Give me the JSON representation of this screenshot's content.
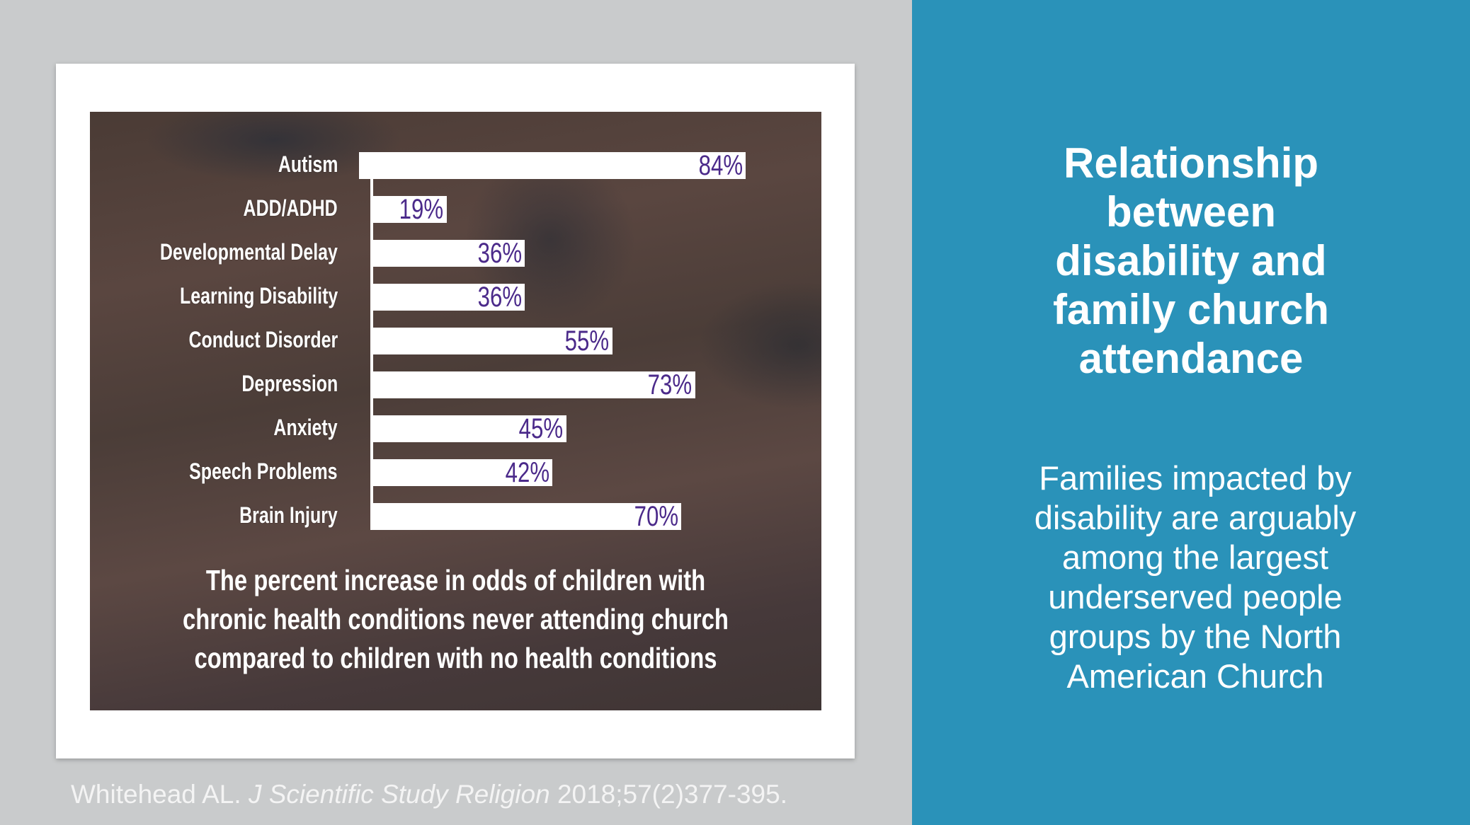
{
  "chart_data": {
    "type": "bar",
    "orientation": "horizontal",
    "categories": [
      "Autism",
      "ADD/ADHD",
      "Developmental Delay",
      "Learning Disability",
      "Conduct Disorder",
      "Depression",
      "Anxiety",
      "Speech Problems",
      "Brain Injury"
    ],
    "values": [
      84,
      19,
      36,
      36,
      55,
      73,
      45,
      42,
      70
    ],
    "value_labels": [
      "84%",
      "19%",
      "36%",
      "36%",
      "55%",
      "73%",
      "45%",
      "42%",
      "70%"
    ],
    "caption_lines": [
      "The percent increase in odds of children with",
      "chronic health conditions never attending church",
      "compared to children with no health conditions"
    ],
    "xlim": [
      0,
      100
    ],
    "bar_color": "#ffffff",
    "label_color": "#4b2a8a"
  },
  "citation": {
    "authors": "Whitehead AL.",
    "journal": "J Scientific Study Religion",
    "details": "2018;57(2)377-395."
  },
  "panel": {
    "title_lines": [
      "Relationship",
      "between",
      "disability and",
      "family church",
      "attendance"
    ],
    "body_lines": [
      "Families impacted by",
      "disability are arguably",
      "among the largest",
      "underserved people",
      "groups by the North",
      "American Church"
    ],
    "color": "#2a92b9"
  }
}
